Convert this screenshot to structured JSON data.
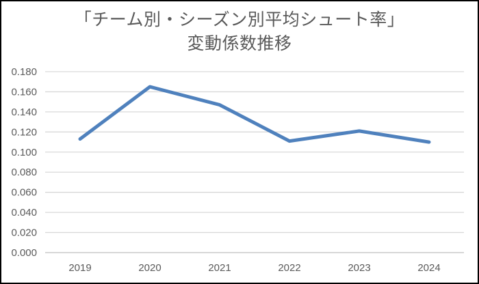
{
  "frame": {
    "background": "#ffffff",
    "border_color": "#000000"
  },
  "chart_data": {
    "type": "line",
    "title_lines": [
      "「チーム別・シーズン別平均シュート率」",
      "変動係数推移"
    ],
    "categories": [
      "2019",
      "2020",
      "2021",
      "2022",
      "2023",
      "2024"
    ],
    "values": [
      0.113,
      0.165,
      0.147,
      0.111,
      0.121,
      0.11
    ],
    "xlabel": "",
    "ylabel": "",
    "ylim": [
      0.0,
      0.18
    ],
    "ytick_step": 0.02,
    "ytick_labels": [
      "0.180",
      "0.160",
      "0.140",
      "0.120",
      "0.100",
      "0.080",
      "0.060",
      "0.040",
      "0.020",
      "0.000"
    ],
    "grid": true,
    "legend": false,
    "markers": false,
    "line_color": "#4F81BD",
    "line_width": 5,
    "gridline_color": "#D9D9D9",
    "axis_line_color": "#BFBFBF",
    "title_color": "#595959",
    "tick_label_color": "#595959",
    "tick_font_size": 15
  }
}
